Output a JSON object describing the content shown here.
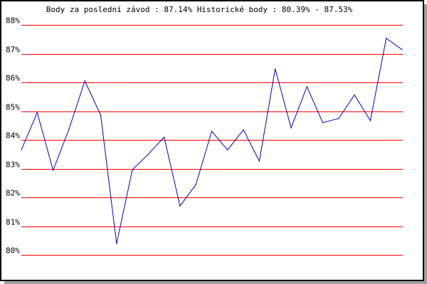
{
  "chart_data": {
    "type": "line",
    "title": "Body za poslední závod : 87.14%  Historické body : 80.39% - 87.53%",
    "xlabel": "",
    "ylabel": "",
    "ylim": [
      80,
      88
    ],
    "y_ticks": [
      "80%",
      "81%",
      "82%",
      "83%",
      "84%",
      "85%",
      "86%",
      "87%",
      "88%"
    ],
    "grid": true,
    "grid_color": "#ff0000",
    "line_color": "#0000cc",
    "values": [
      83.65,
      84.95,
      82.94,
      84.37,
      86.05,
      84.86,
      80.39,
      82.96,
      83.5,
      84.1,
      81.7,
      82.44,
      84.3,
      83.65,
      84.35,
      83.26,
      86.47,
      84.42,
      85.85,
      84.6,
      84.74,
      85.56,
      84.67,
      87.53,
      87.14
    ]
  }
}
